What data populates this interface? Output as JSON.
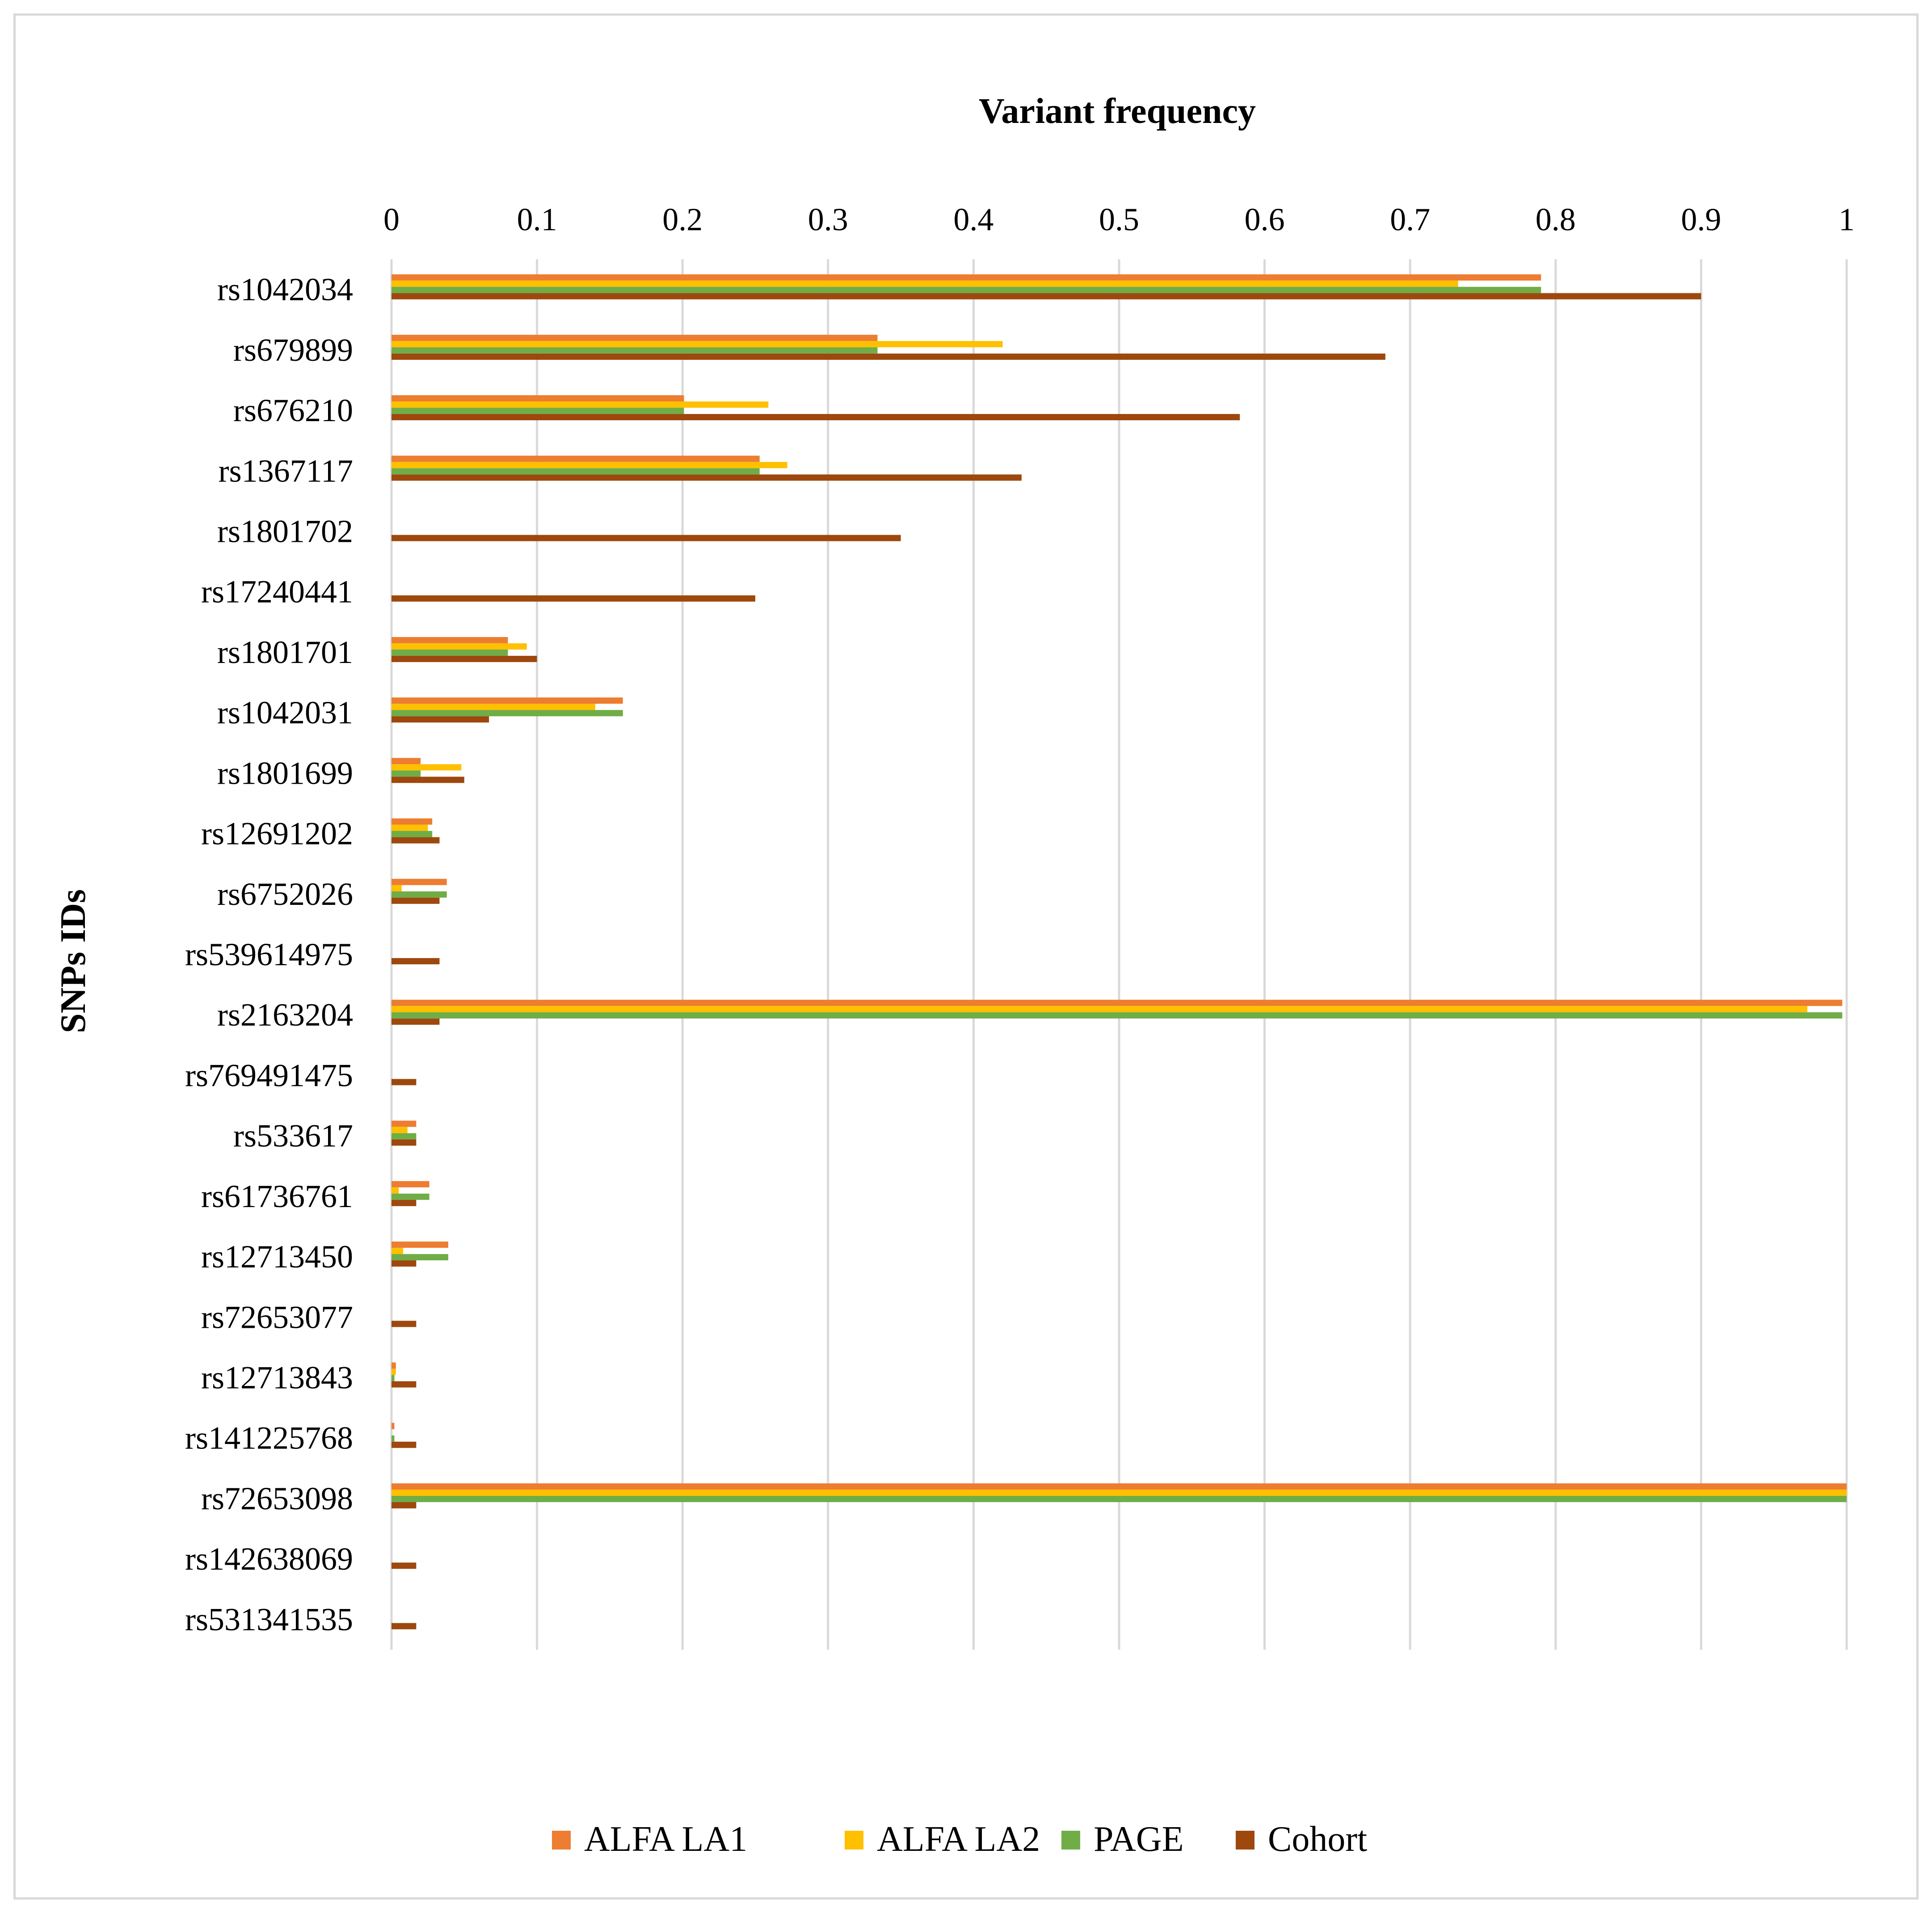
{
  "chart_data": {
    "type": "bar",
    "orientation": "horizontal",
    "title": "Variant frequency",
    "xlabel": "Variant frequency",
    "ylabel": "SNPs IDs",
    "xlim": [
      0,
      1
    ],
    "xticks": [
      "0",
      "0.1",
      "0.2",
      "0.3",
      "0.4",
      "0.5",
      "0.6",
      "0.7",
      "0.8",
      "0.9",
      "1"
    ],
    "grid": true,
    "legend_position": "bottom",
    "categories": [
      "rs1042034",
      "rs679899",
      "rs676210",
      "rs1367117",
      "rs1801702",
      "rs17240441",
      "rs1801701",
      "rs1042031",
      "rs1801699",
      "rs12691202",
      "rs6752026",
      "rs539614975",
      "rs2163204",
      "rs769491475",
      "rs533617",
      "rs61736761",
      "rs12713450",
      "rs72653077",
      "rs12713843",
      "rs141225768",
      "rs72653098",
      "rs142638069",
      "rs531341535"
    ],
    "series": [
      {
        "name": "ALFA LA1",
        "color": "#ED7D31",
        "values": [
          0.79,
          0.334,
          0.201,
          0.253,
          0,
          0,
          0.08,
          0.159,
          0.02,
          0.028,
          0.038,
          0,
          0.997,
          0,
          0.017,
          0.026,
          0.039,
          0,
          0.003,
          0.002,
          1.0,
          0,
          0
        ]
      },
      {
        "name": "ALFA LA2",
        "color": "#FFC000",
        "values": [
          0.733,
          0.42,
          0.259,
          0.272,
          0,
          0,
          0.093,
          0.14,
          0.048,
          0.025,
          0.007,
          0,
          0.973,
          0,
          0.011,
          0.005,
          0.008,
          0,
          0.003,
          0,
          1.0,
          0,
          0
        ]
      },
      {
        "name": "PAGE",
        "color": "#70AD47",
        "values": [
          0.79,
          0.334,
          0.201,
          0.253,
          0,
          0,
          0.08,
          0.159,
          0.02,
          0.028,
          0.038,
          0,
          0.997,
          0,
          0.017,
          0.026,
          0.039,
          0,
          0.002,
          0.002,
          1.0,
          0,
          0
        ]
      },
      {
        "name": "Cohort",
        "color": "#9E480E",
        "values": [
          0.9,
          0.683,
          0.583,
          0.433,
          0.35,
          0.25,
          0.1,
          0.067,
          0.05,
          0.033,
          0.033,
          0.033,
          0.033,
          0.017,
          0.017,
          0.017,
          0.017,
          0.017,
          0.017,
          0.017,
          0.017,
          0.017,
          0.017
        ]
      }
    ]
  }
}
